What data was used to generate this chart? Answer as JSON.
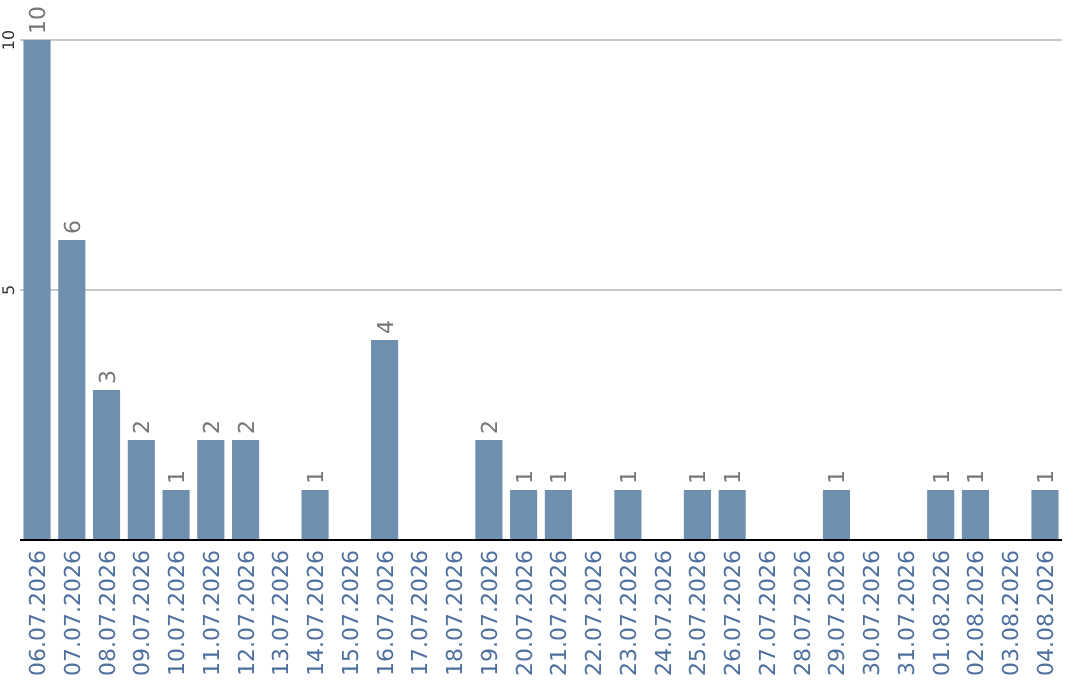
{
  "chart_data": {
    "type": "bar",
    "categories": [
      "06.07.2026",
      "07.07.2026",
      "08.07.2026",
      "09.07.2026",
      "10.07.2026",
      "11.07.2026",
      "12.07.2026",
      "13.07.2026",
      "14.07.2026",
      "15.07.2026",
      "16.07.2026",
      "17.07.2026",
      "18.07.2026",
      "19.07.2026",
      "20.07.2026",
      "21.07.2026",
      "22.07.2026",
      "23.07.2026",
      "24.07.2026",
      "25.07.2026",
      "26.07.2026",
      "27.07.2026",
      "28.07.2026",
      "29.07.2026",
      "30.07.2026",
      "31.07.2026",
      "01.08.2026",
      "02.08.2026",
      "03.08.2026",
      "04.08.2026"
    ],
    "values": [
      10,
      6,
      3,
      2,
      1,
      2,
      2,
      null,
      1,
      null,
      4,
      null,
      null,
      2,
      1,
      1,
      null,
      1,
      null,
      1,
      1,
      null,
      null,
      1,
      null,
      null,
      1,
      1,
      null,
      1
    ],
    "color": "#6e8fae",
    "ylim": [
      0,
      10
    ],
    "yticks": [
      5,
      10
    ],
    "grid": "y",
    "data_labels": true
  }
}
